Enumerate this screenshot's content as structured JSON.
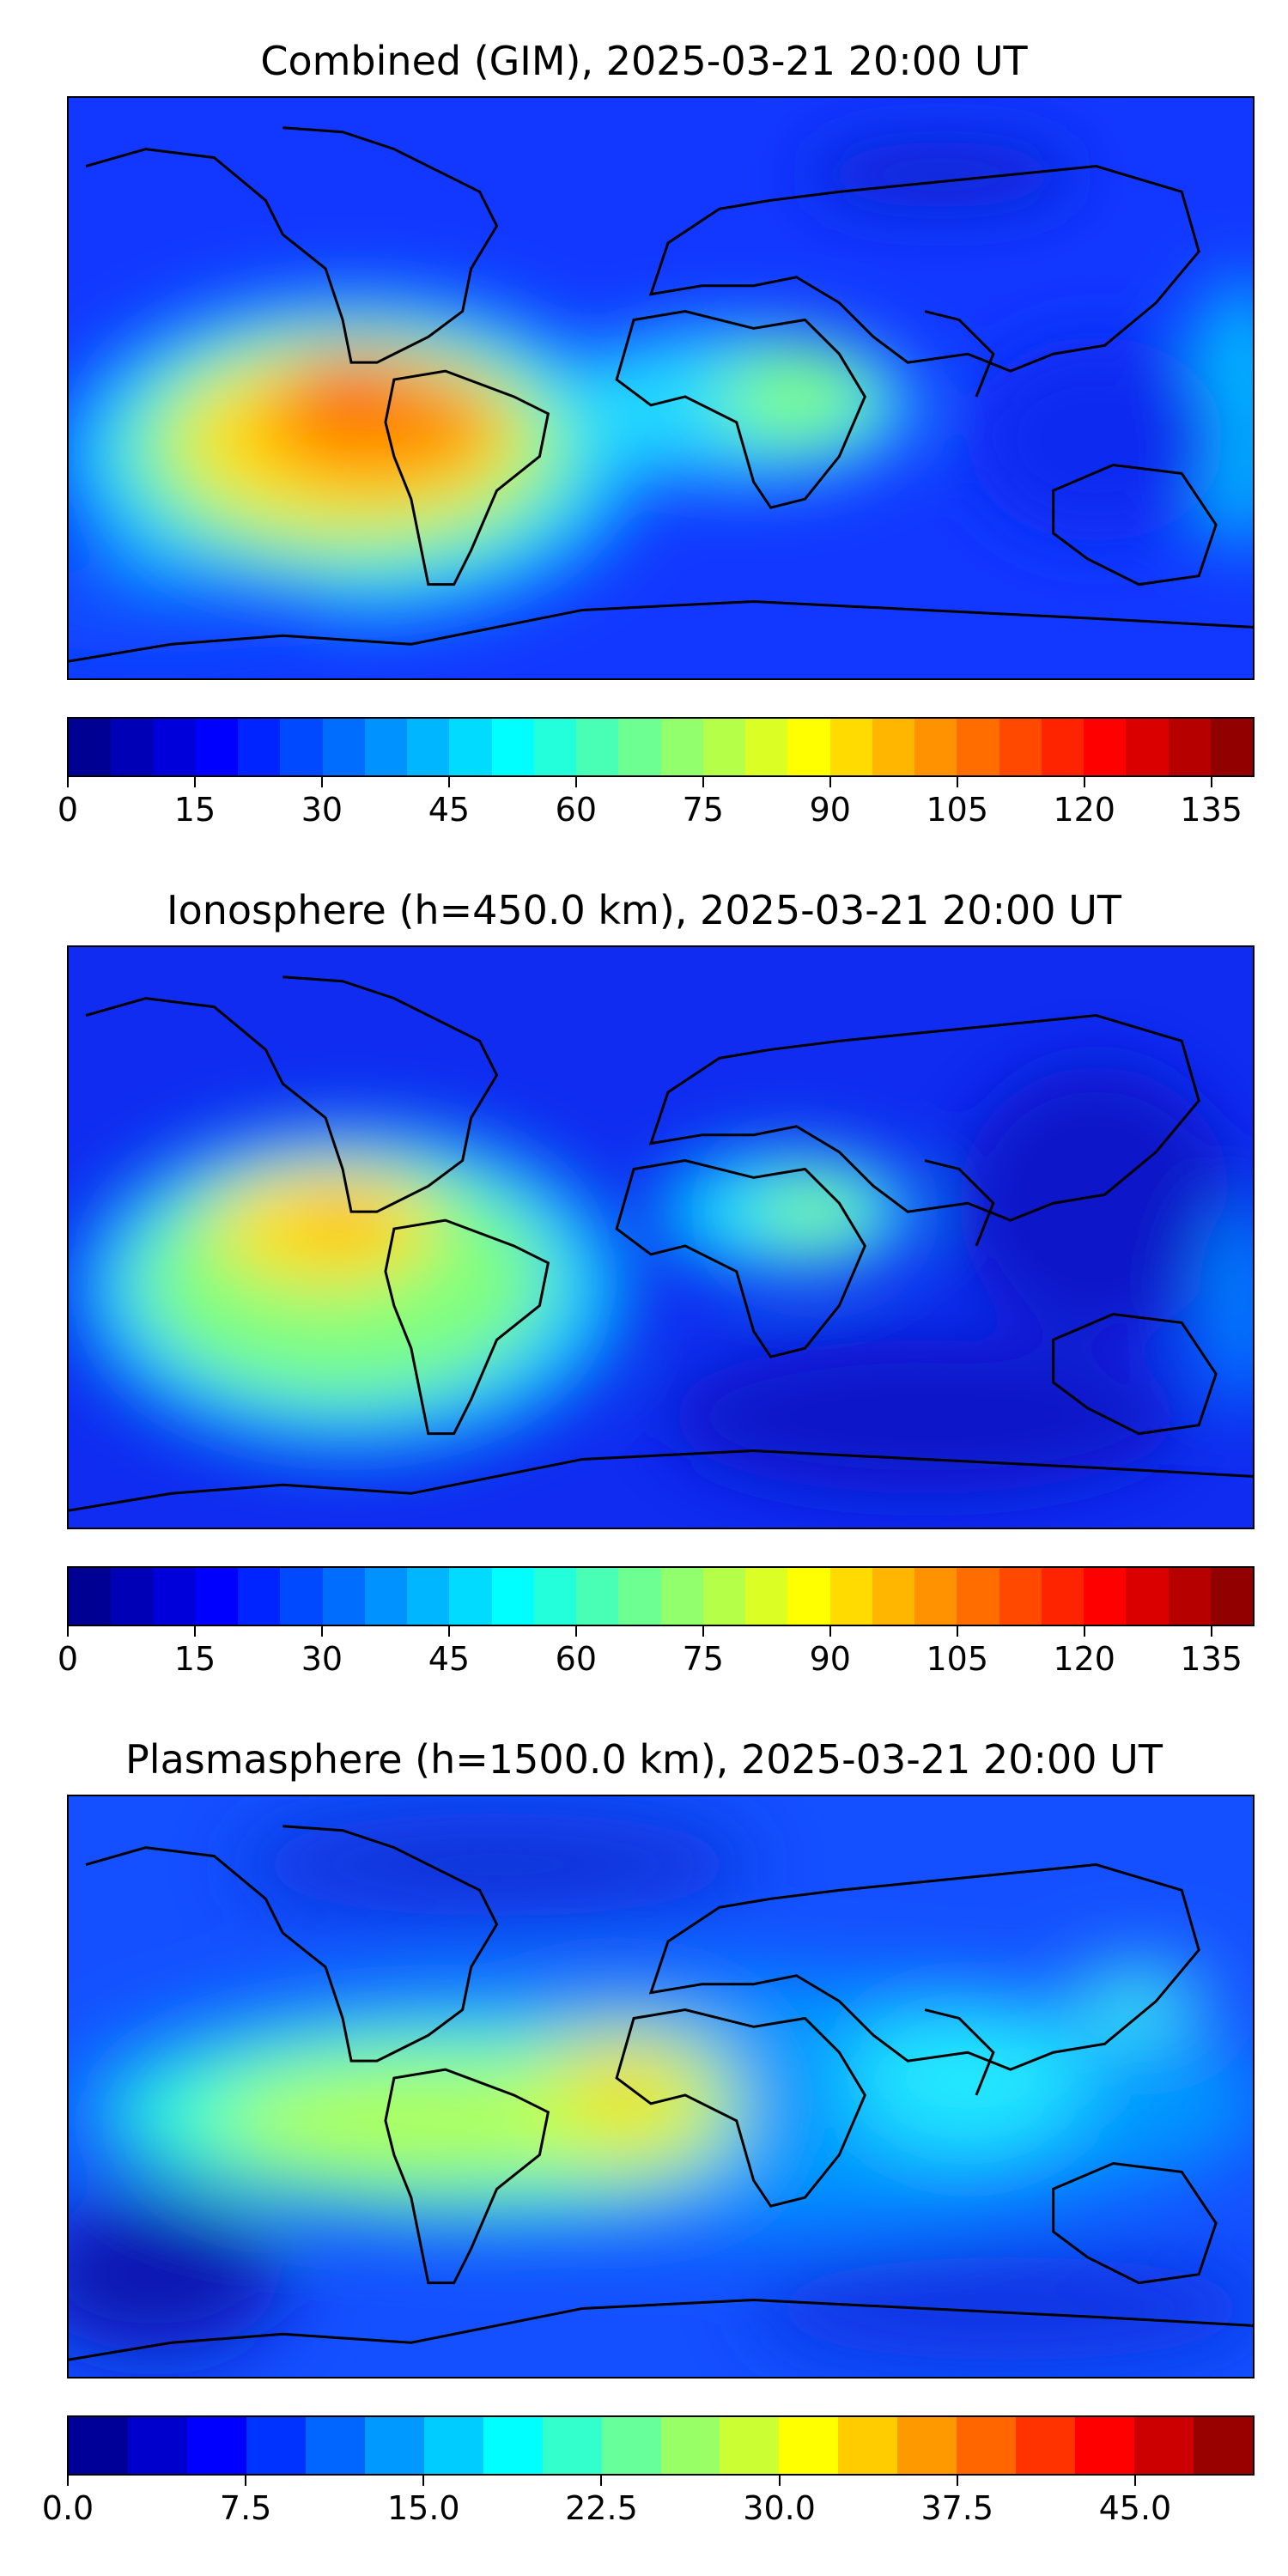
{
  "panels": [
    {
      "title": "Combined (GIM), 2025-03-21 20:00 UT",
      "ticks": [
        "0",
        "15",
        "30",
        "45",
        "60",
        "75",
        "90",
        "105",
        "120",
        "135"
      ],
      "tick_values": [
        0,
        15,
        30,
        45,
        60,
        75,
        90,
        105,
        120,
        135
      ],
      "range": [
        0,
        140
      ],
      "levels": 28
    },
    {
      "title": "Ionosphere  (h=450.0 km), 2025-03-21 20:00 UT",
      "ticks": [
        "0",
        "15",
        "30",
        "45",
        "60",
        "75",
        "90",
        "105",
        "120",
        "135"
      ],
      "tick_values": [
        0,
        15,
        30,
        45,
        60,
        75,
        90,
        105,
        120,
        135
      ],
      "range": [
        0,
        140
      ],
      "levels": 28
    },
    {
      "title": "Plasmasphere (h=1500.0 km), 2025-03-21 20:00 UT",
      "ticks": [
        "0.0",
        "7.5",
        "15.0",
        "22.5",
        "30.0",
        "37.5",
        "45.0"
      ],
      "tick_values": [
        0,
        7.5,
        15,
        22.5,
        30,
        37.5,
        45
      ],
      "range": [
        0,
        50
      ],
      "levels": 20
    }
  ],
  "colormap": "jet"
}
